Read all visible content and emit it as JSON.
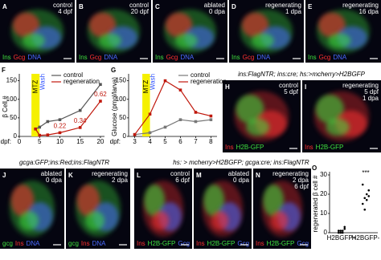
{
  "panels": [
    {
      "letter": "A",
      "lines": [
        "control",
        "4 dpf"
      ],
      "stain": [
        {
          "text": "Ins",
          "color": "#3fe03f"
        },
        {
          "text": "Gcg",
          "color": "#ff3030"
        },
        {
          "text": "DNA",
          "color": "#4a6bff"
        }
      ]
    },
    {
      "letter": "B",
      "lines": [
        "control",
        "20 dpf"
      ],
      "stain": [
        {
          "text": "Ins",
          "color": "#3fe03f"
        },
        {
          "text": "Gcg",
          "color": "#ff3030"
        },
        {
          "text": "DNA",
          "color": "#4a6bff"
        }
      ]
    },
    {
      "letter": "C",
      "lines": [
        "ablated",
        "0 dpa"
      ],
      "stain": [
        {
          "text": "Ins",
          "color": "#3fe03f"
        },
        {
          "text": "Gcg",
          "color": "#ff3030"
        },
        {
          "text": "DNA",
          "color": "#4a6bff"
        }
      ]
    },
    {
      "letter": "D",
      "lines": [
        "regenerating",
        "1 dpa"
      ],
      "stain": [
        {
          "text": "Ins",
          "color": "#3fe03f"
        },
        {
          "text": "Gcg",
          "color": "#ff3030"
        },
        {
          "text": "DNA",
          "color": "#4a6bff"
        }
      ]
    },
    {
      "letter": "E",
      "lines": [
        "regenerating",
        "16 dpa"
      ],
      "stain": [
        {
          "text": "Ins",
          "color": "#3fe03f"
        },
        {
          "text": "Gcg",
          "color": "#ff3030"
        },
        {
          "text": "DNA",
          "color": "#4a6bff"
        }
      ]
    },
    {
      "letter": "H",
      "lines": [
        "control",
        "5 dpf"
      ],
      "stain": [
        {
          "text": "Ins",
          "color": "#ff3030"
        },
        {
          "text": "H2B-GFP",
          "color": "#3fe03f"
        }
      ]
    },
    {
      "letter": "I",
      "lines": [
        "regenerating",
        "5 dpf",
        "1 dpa"
      ],
      "stain": [
        {
          "text": "Ins",
          "color": "#ff3030"
        },
        {
          "text": "H2B-GFP",
          "color": "#3fe03f"
        }
      ]
    },
    {
      "letter": "J",
      "lines": [
        "ablated",
        "0 dpa"
      ],
      "stain": [
        {
          "text": "gcg",
          "color": "#3fe03f"
        },
        {
          "text": "Ins",
          "color": "#ff3030"
        },
        {
          "text": "DNA",
          "color": "#4a6bff"
        }
      ]
    },
    {
      "letter": "K",
      "lines": [
        "regenerating",
        "2 dpa"
      ],
      "stain": [
        {
          "text": "gcg",
          "color": "#3fe03f"
        },
        {
          "text": "Ins",
          "color": "#ff3030"
        },
        {
          "text": "DNA",
          "color": "#4a6bff"
        }
      ]
    },
    {
      "letter": "L",
      "lines": [
        "control",
        "6 dpf"
      ],
      "stain": [
        {
          "text": "Ins",
          "color": "#ff3030"
        },
        {
          "text": "H2B-GFP",
          "color": "#3fe03f"
        },
        {
          "text": "Gcg",
          "color": "#4a6bff"
        }
      ]
    },
    {
      "letter": "M",
      "lines": [
        "ablated",
        "0 dpa"
      ],
      "stain": [
        {
          "text": "Ins",
          "color": "#ff3030"
        },
        {
          "text": "H2B-GFP",
          "color": "#3fe03f"
        },
        {
          "text": "Gcg",
          "color": "#4a6bff"
        }
      ]
    },
    {
      "letter": "N",
      "lines": [
        "regenerating",
        "2 dpa",
        "6 dpf"
      ],
      "stain": [
        {
          "text": "Ins",
          "color": "#ff3030"
        },
        {
          "text": "H2B-GFP",
          "color": "#3fe03f"
        },
        {
          "text": "Gcg",
          "color": "#4a6bff"
        }
      ]
    }
  ],
  "headers": [
    "ins:FlagNTR; ins:cre; hs:>mcherry>H2BGFP",
    "gcga:GFP;ins:Red;ins:FlagNTR",
    "hs: > mcherry>H2BGFP; gcga:cre; ins:FlagNTR"
  ],
  "chart_data": [
    {
      "type": "line",
      "panel": "F",
      "ylabel": "β Cell #",
      "xlabel": "dpf:",
      "x": [
        4,
        5,
        7,
        10,
        15,
        20
      ],
      "xlim": [
        0,
        21
      ],
      "xticks": [
        0,
        5,
        10,
        15,
        20
      ],
      "ylim": [
        0,
        160
      ],
      "yticks": [
        0,
        50,
        100,
        150
      ],
      "band": {
        "label": "MTZ",
        "range": [
          3,
          5
        ],
        "color": "#f5f000"
      },
      "wash": {
        "label": "Wash",
        "color": "#3355ff"
      },
      "series": [
        {
          "name": "control",
          "color": "#555555",
          "values": [
            20,
            25,
            40,
            45,
            70,
            140
          ]
        },
        {
          "name": "regeneration",
          "color": "#c0180c",
          "values": [
            20,
            3,
            4,
            10,
            24,
            95
          ]
        }
      ],
      "annotations": [
        {
          "text": "0.22",
          "x": 10
        },
        {
          "text": "0.34",
          "x": 15
        },
        {
          "text": "0.62",
          "x": 20
        }
      ]
    },
    {
      "type": "line",
      "panel": "G",
      "ylabel": "Glucose (pmol/larva)",
      "xlabel": "dpf:",
      "x": [
        3,
        4,
        5,
        6,
        7,
        8
      ],
      "xlim": [
        2.6,
        8.4
      ],
      "xticks": [
        3,
        4,
        5,
        6,
        7,
        8
      ],
      "ylim": [
        0,
        160
      ],
      "yticks": [
        0,
        50,
        100,
        150
      ],
      "band": {
        "label": "MTZ",
        "range": [
          3.5,
          4
        ],
        "color": "#f5f000"
      },
      "wash": {
        "label": "Wash",
        "color": "#3355ff"
      },
      "series": [
        {
          "name": "control",
          "color": "#777777",
          "values": [
            5,
            10,
            25,
            45,
            40,
            45
          ]
        },
        {
          "name": "regeneration",
          "color": "#c0180c",
          "values": [
            5,
            60,
            150,
            125,
            65,
            55
          ]
        }
      ],
      "annotations": []
    },
    {
      "type": "strip",
      "panel": "O",
      "ylabel": "regenerated β cell #",
      "categories": [
        "H2BGFP+",
        "H2BGFP-"
      ],
      "ylim": [
        0,
        30
      ],
      "yticks": [
        0,
        10,
        20,
        30
      ],
      "values": [
        [
          0,
          1,
          0,
          2,
          1,
          0,
          1,
          3
        ],
        [
          15,
          18,
          20,
          22,
          25,
          12,
          17,
          19
        ]
      ],
      "significance": "***"
    }
  ]
}
